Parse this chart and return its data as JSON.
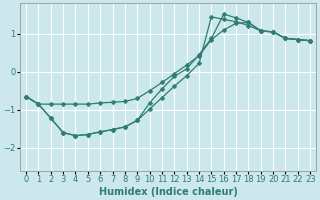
{
  "xlabel": "Humidex (Indice chaleur)",
  "ylabel": "",
  "bg_color": "#cce8ec",
  "grid_color": "#ffffff",
  "line_color": "#2e7d72",
  "xlim": [
    -0.5,
    23.5
  ],
  "ylim": [
    -2.6,
    1.8
  ],
  "yticks": [
    -2,
    -1,
    0,
    1
  ],
  "xticks": [
    0,
    1,
    2,
    3,
    4,
    5,
    6,
    7,
    8,
    9,
    10,
    11,
    12,
    13,
    14,
    15,
    16,
    17,
    18,
    19,
    20,
    21,
    22,
    23
  ],
  "series": [
    {
      "x": [
        0,
        1,
        2,
        3,
        4,
        5,
        6,
        7,
        8,
        9,
        10,
        11,
        12,
        13,
        14,
        15,
        16,
        17,
        18,
        19,
        20,
        21,
        22,
        23
      ],
      "y": [
        -0.65,
        -0.85,
        -0.85,
        -0.85,
        -0.85,
        -0.85,
        -0.82,
        -0.8,
        -0.78,
        -0.7,
        -0.5,
        -0.28,
        -0.05,
        0.18,
        0.42,
        0.85,
        1.1,
        1.28,
        1.3,
        1.08,
        1.05,
        0.88,
        0.85,
        0.82
      ]
    },
    {
      "x": [
        0,
        1,
        2,
        3,
        4,
        5,
        6,
        7,
        8,
        9,
        10,
        11,
        12,
        13,
        14,
        15,
        16,
        17,
        18,
        19,
        20,
        21,
        22,
        23
      ],
      "y": [
        -0.65,
        -0.85,
        -1.22,
        -1.6,
        -1.68,
        -1.65,
        -1.58,
        -1.52,
        -1.45,
        -1.28,
        -0.98,
        -0.68,
        -0.38,
        -0.1,
        0.22,
        1.45,
        1.38,
        1.32,
        1.22,
        1.08,
        1.05,
        0.88,
        0.85,
        0.82
      ]
    },
    {
      "x": [
        0,
        1,
        2,
        3,
        4,
        5,
        6,
        7,
        8,
        9,
        10,
        11,
        12,
        13,
        14,
        15,
        16,
        17,
        18,
        19,
        20,
        21,
        22,
        23
      ],
      "y": [
        -0.65,
        -0.85,
        -1.22,
        -1.6,
        -1.68,
        -1.65,
        -1.58,
        -1.52,
        -1.45,
        -1.28,
        -0.82,
        -0.45,
        -0.12,
        0.08,
        0.45,
        0.88,
        1.52,
        1.42,
        1.3,
        1.08,
        1.05,
        0.88,
        0.85,
        0.82
      ]
    }
  ]
}
